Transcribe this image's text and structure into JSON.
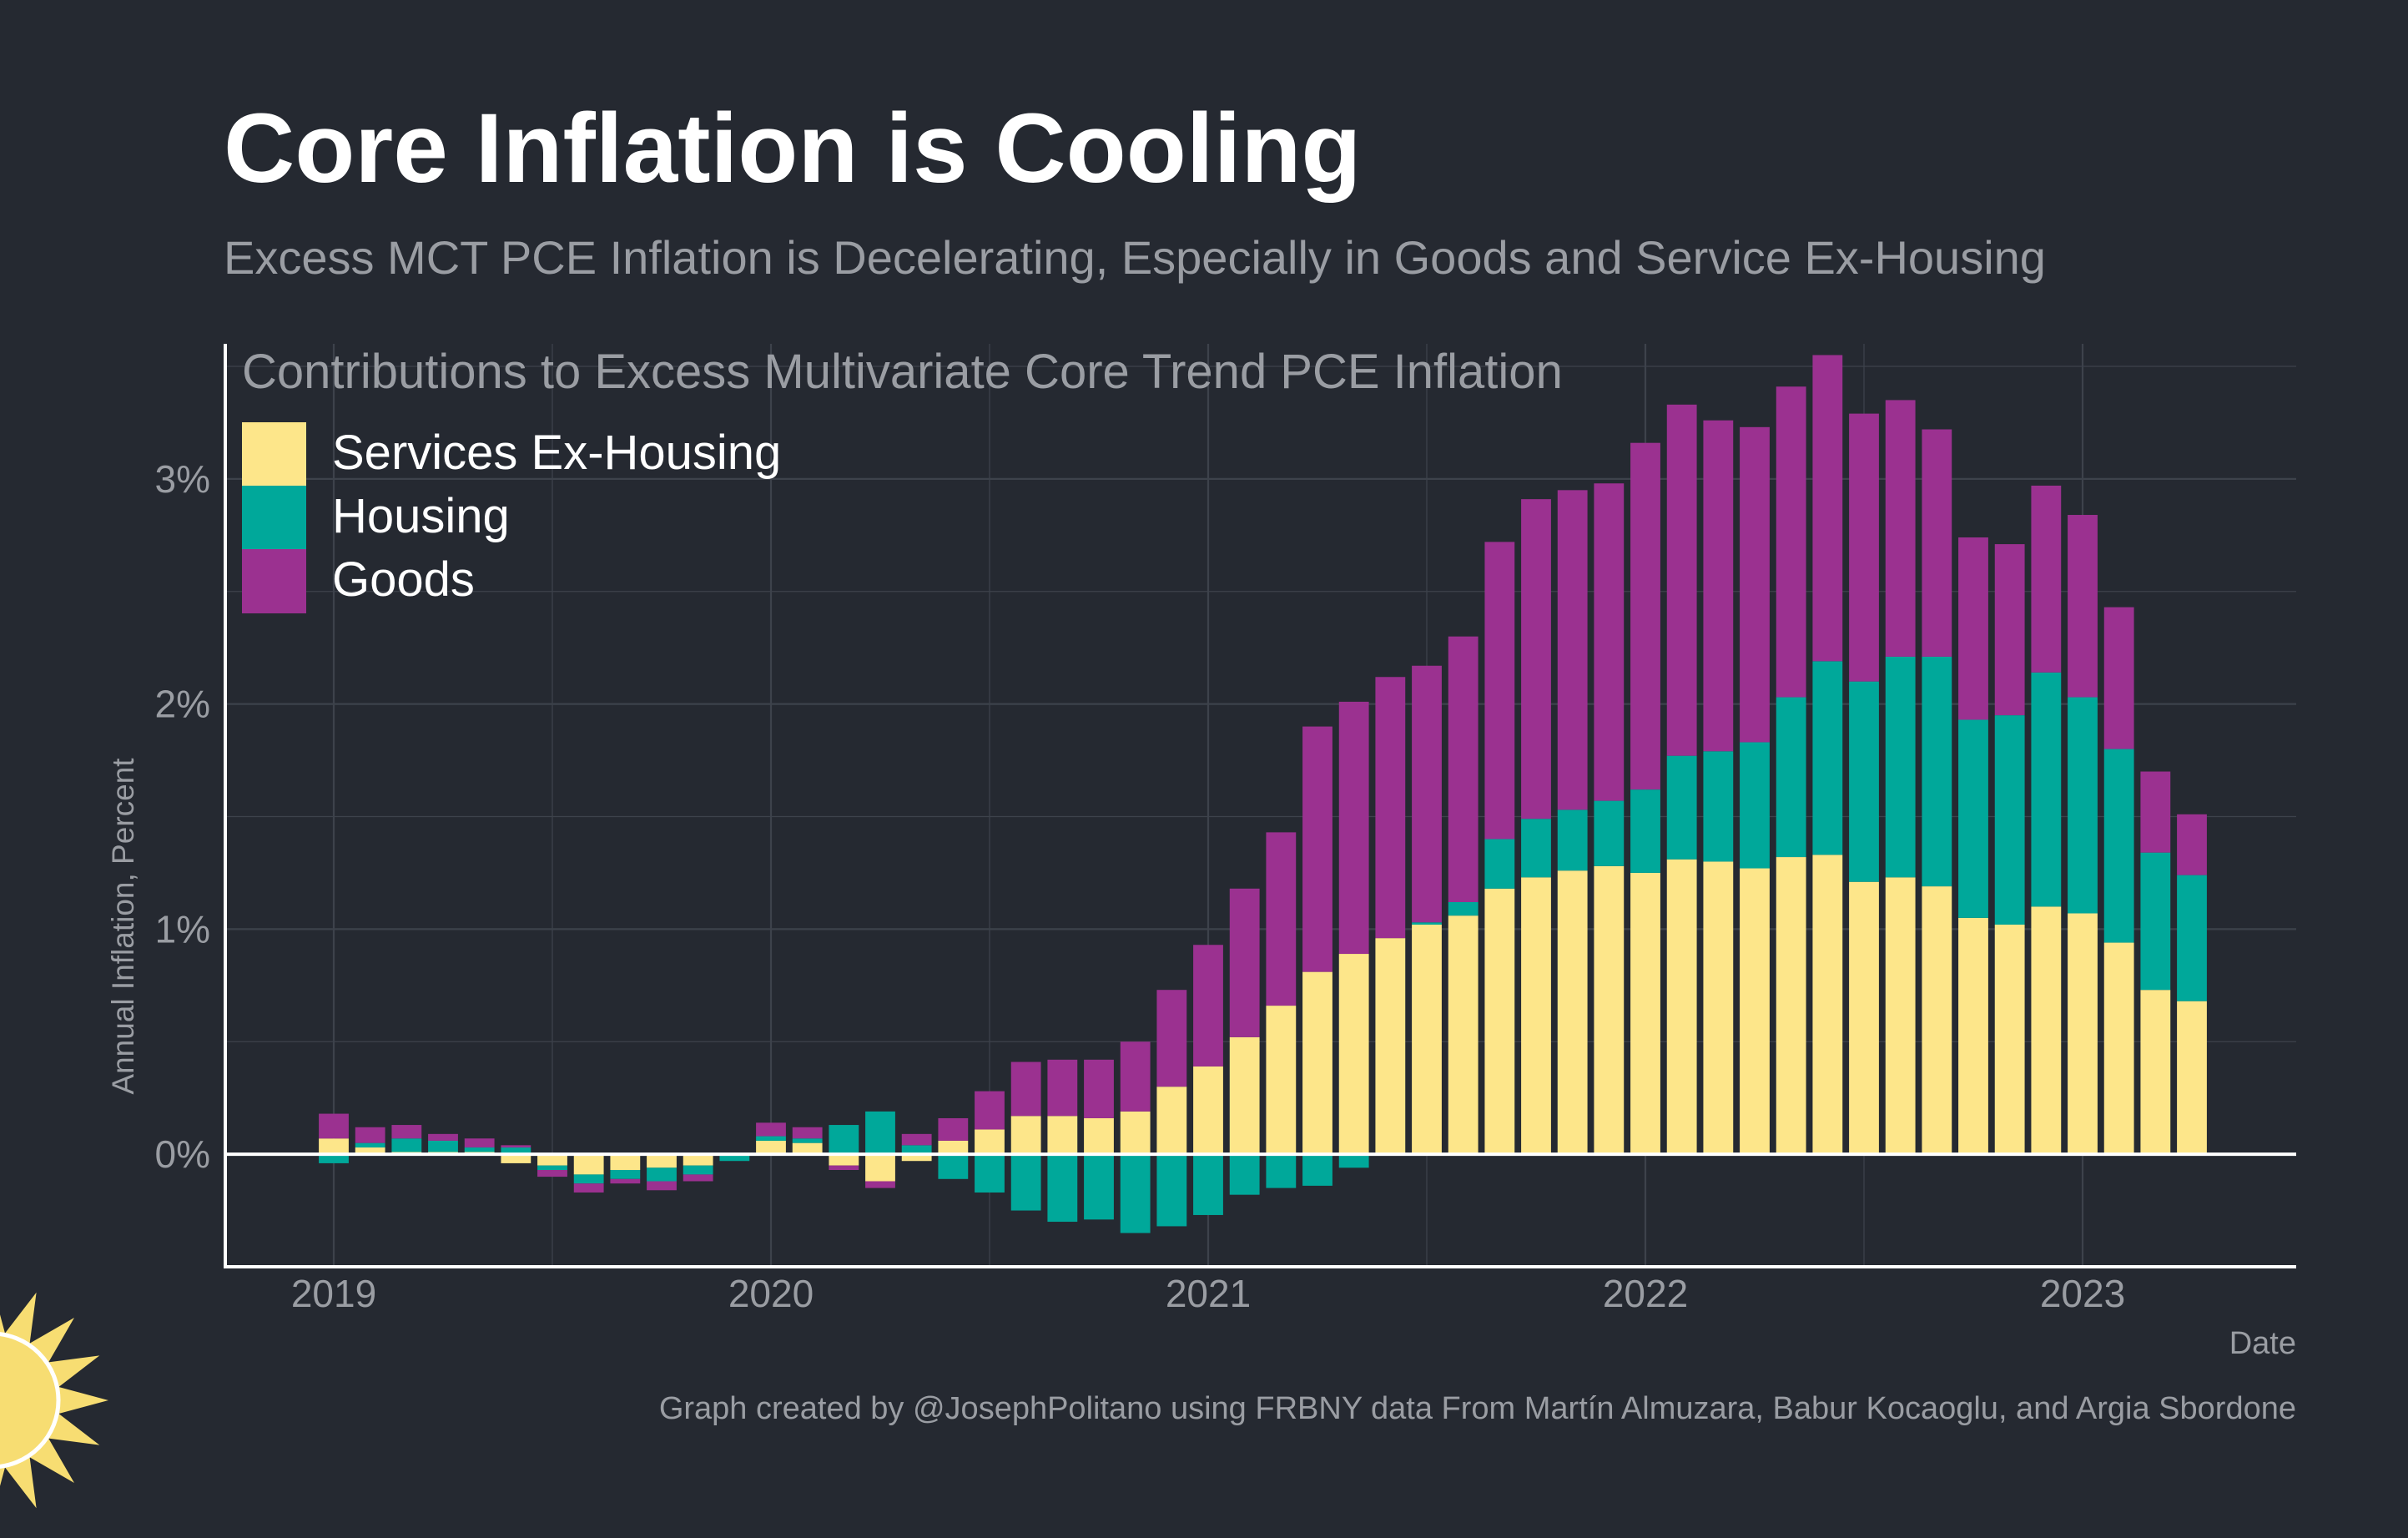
{
  "title": "Core Inflation is Cooling",
  "subtitle": "Excess MCT PCE Inflation is Decelerating, Especially in Goods and Service Ex-Housing",
  "caption": "Graph created by @JosephPolitano using FRBNY data From Martín Almuzara, Babur Kocaoglu, and Argia Sbordone",
  "colors": {
    "background": "#252931",
    "grid": "#3d424b",
    "axis": "#ffffff",
    "services": "#fde68a",
    "housing": "#00a89a",
    "goods": "#9b3190",
    "sun": "#f7dd72"
  },
  "logo": {
    "icon": "sun-logo-icon"
  },
  "chart_data": {
    "type": "bar",
    "stacked": true,
    "inner_title": "Contributions to Excess Multivariate Core Trend PCE Inflation",
    "xlabel": "Date",
    "ylabel": "Annual Inflation, Percent",
    "ylim": [
      -0.5,
      3.6
    ],
    "yticks": [
      0,
      1,
      2,
      3
    ],
    "ytick_labels": [
      "0%",
      "1%",
      "2%",
      "3%"
    ],
    "xticks": [
      "2019",
      "2020",
      "2021",
      "2022",
      "2023"
    ],
    "x_start": "2019-01",
    "grid": true,
    "legend_position": "top-left",
    "categories": [
      "2019-01",
      "2019-02",
      "2019-03",
      "2019-04",
      "2019-05",
      "2019-06",
      "2019-07",
      "2019-08",
      "2019-09",
      "2019-10",
      "2019-11",
      "2019-12",
      "2020-01",
      "2020-02",
      "2020-03",
      "2020-04",
      "2020-05",
      "2020-06",
      "2020-07",
      "2020-08",
      "2020-09",
      "2020-10",
      "2020-11",
      "2020-12",
      "2021-01",
      "2021-02",
      "2021-03",
      "2021-04",
      "2021-05",
      "2021-06",
      "2021-07",
      "2021-08",
      "2021-09",
      "2021-10",
      "2021-11",
      "2021-12",
      "2022-01",
      "2022-02",
      "2022-03",
      "2022-04",
      "2022-05",
      "2022-06",
      "2022-07",
      "2022-08",
      "2022-09",
      "2022-10",
      "2022-11",
      "2022-12",
      "2023-01",
      "2023-02",
      "2023-03",
      "2023-04"
    ],
    "series": [
      {
        "name": "Services Ex-Housing",
        "color": "#fde68a",
        "values": [
          0.07,
          0.03,
          0.01,
          0.01,
          0.01,
          -0.04,
          -0.05,
          -0.09,
          -0.07,
          -0.06,
          -0.05,
          0.0,
          0.06,
          0.05,
          -0.05,
          -0.12,
          -0.03,
          0.06,
          0.11,
          0.17,
          0.17,
          0.16,
          0.19,
          0.3,
          0.39,
          0.52,
          0.66,
          0.81,
          0.89,
          0.96,
          1.02,
          1.06,
          1.18,
          1.23,
          1.26,
          1.28,
          1.25,
          1.31,
          1.3,
          1.27,
          1.32,
          1.33,
          1.21,
          1.23,
          1.19,
          1.05,
          1.02,
          1.1,
          1.07,
          0.94,
          0.73,
          0.68
        ]
      },
      {
        "name": "Housing",
        "color": "#00a89a",
        "values": [
          -0.04,
          0.02,
          0.06,
          0.05,
          0.02,
          0.03,
          -0.02,
          -0.04,
          -0.04,
          -0.06,
          -0.04,
          -0.03,
          0.02,
          0.02,
          0.13,
          0.19,
          0.04,
          -0.11,
          -0.17,
          -0.25,
          -0.3,
          -0.29,
          -0.35,
          -0.32,
          -0.27,
          -0.18,
          -0.15,
          -0.14,
          -0.06,
          0.0,
          0.01,
          0.06,
          0.22,
          0.26,
          0.27,
          0.29,
          0.37,
          0.46,
          0.49,
          0.56,
          0.71,
          0.86,
          0.89,
          0.98,
          1.02,
          0.88,
          0.93,
          1.04,
          0.96,
          0.86,
          0.61,
          0.56
        ]
      },
      {
        "name": "Goods",
        "color": "#9b3190",
        "values": [
          0.11,
          0.07,
          0.06,
          0.03,
          0.04,
          0.01,
          -0.03,
          -0.04,
          -0.02,
          -0.04,
          -0.03,
          0.0,
          0.06,
          0.05,
          -0.02,
          -0.03,
          0.05,
          0.1,
          0.17,
          0.24,
          0.25,
          0.26,
          0.31,
          0.43,
          0.54,
          0.66,
          0.77,
          1.09,
          1.12,
          1.16,
          1.14,
          1.18,
          1.32,
          1.42,
          1.42,
          1.41,
          1.54,
          1.56,
          1.47,
          1.4,
          1.38,
          1.36,
          1.19,
          1.14,
          1.01,
          0.81,
          0.76,
          0.83,
          0.81,
          0.63,
          0.36,
          0.27
        ]
      }
    ]
  }
}
